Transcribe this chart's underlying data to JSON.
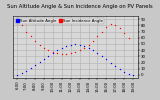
{
  "title": "Sun Altitude Angle & Sun Incidence Angle on PV Panels",
  "legend_labels": [
    "Sun Altitude Angle",
    "Sun Incidence Angle"
  ],
  "legend_colors": [
    "blue",
    "red"
  ],
  "blue_x": [
    6.0,
    6.5,
    7.0,
    7.5,
    8.0,
    8.5,
    9.0,
    9.5,
    10.0,
    10.5,
    11.0,
    11.5,
    12.0,
    12.5,
    13.0,
    13.5,
    14.0,
    14.5,
    15.0,
    15.5,
    16.0,
    16.5,
    17.0,
    17.5,
    18.0,
    18.5,
    19.0
  ],
  "blue_y": [
    0,
    3,
    7,
    11,
    16,
    21,
    26,
    31,
    36,
    40,
    44,
    47,
    49,
    50,
    49,
    47,
    44,
    40,
    35,
    30,
    25,
    20,
    14,
    9,
    4,
    1,
    0
  ],
  "red_x": [
    6.5,
    7.0,
    7.5,
    8.0,
    8.5,
    9.0,
    9.5,
    10.0,
    10.5,
    11.0,
    11.5,
    12.0,
    12.5,
    13.0,
    13.5,
    14.0,
    14.5,
    15.0,
    15.5,
    16.0,
    16.5,
    17.0,
    17.5,
    18.0,
    18.5
  ],
  "red_y": [
    80,
    70,
    62,
    55,
    49,
    44,
    40,
    37,
    35,
    34,
    34,
    35,
    37,
    40,
    44,
    49,
    55,
    62,
    70,
    78,
    82,
    80,
    75,
    68,
    60
  ],
  "xlim": [
    5.5,
    19.5
  ],
  "ylim": [
    -5,
    95
  ],
  "ytick_positions": [
    0,
    10,
    20,
    30,
    40,
    50,
    60,
    70,
    80,
    90
  ],
  "ytick_labels": [
    "0",
    "10",
    "20",
    "30",
    "40",
    "50",
    "60",
    "70",
    "80",
    "90"
  ],
  "xtick_positions": [
    6,
    7,
    8,
    9,
    10,
    11,
    12,
    13,
    14,
    15,
    16,
    17,
    18,
    19
  ],
  "xtick_labels": [
    "6:00",
    "7:00",
    "8:00",
    "9:00",
    "10:00",
    "11:00",
    "12:00",
    "13:00",
    "14:00",
    "15:00",
    "16:00",
    "17:00",
    "18:00",
    "19:00"
  ],
  "bg_color": "#c8c8c8",
  "plot_bg_color": "#d8d8d8",
  "grid_color": "#b0b0b0",
  "title_fontsize": 3.8,
  "tick_fontsize": 2.8,
  "legend_fontsize": 2.8,
  "marker_size": 1.0
}
